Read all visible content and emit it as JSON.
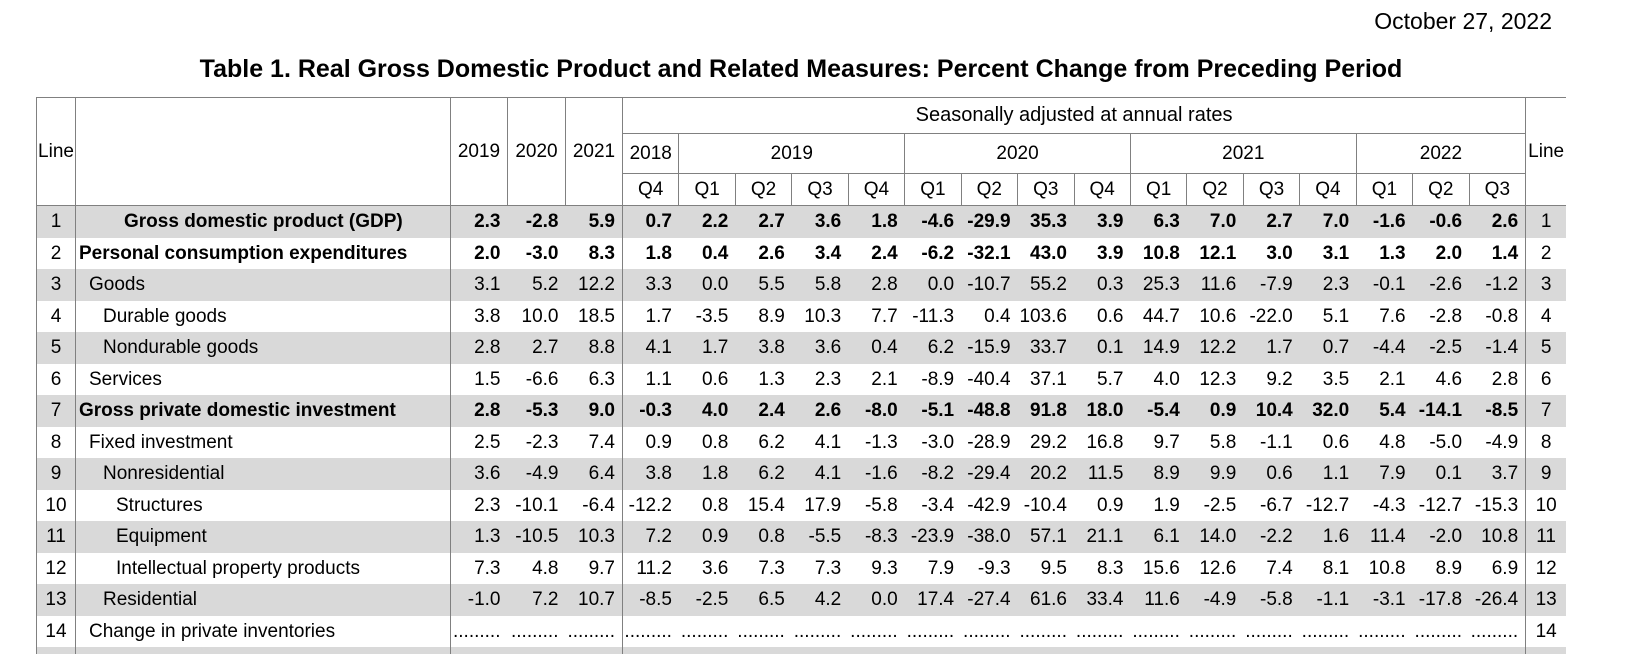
{
  "date": "October 27, 2022",
  "title": "Table 1. Real Gross Domestic Product and Related Measures: Percent Change from Preceding Period",
  "colors": {
    "row_shade": "#d9d9d9",
    "border": "#808080",
    "text": "#000000"
  },
  "header": {
    "line_label": "Line",
    "sa_label": "Seasonally adjusted at annual rates",
    "annual_years": [
      "2019",
      "2020",
      "2021"
    ],
    "year_groups": [
      {
        "label": "2018",
        "span": 1
      },
      {
        "label": "2019",
        "span": 4
      },
      {
        "label": "2020",
        "span": 4
      },
      {
        "label": "2021",
        "span": 4
      },
      {
        "label": "2022",
        "span": 3
      }
    ],
    "quarters": [
      "Q4",
      "Q1",
      "Q2",
      "Q3",
      "Q4",
      "Q1",
      "Q2",
      "Q3",
      "Q4",
      "Q1",
      "Q2",
      "Q3",
      "Q4",
      "Q1",
      "Q2",
      "Q3"
    ]
  },
  "rows": [
    {
      "line": "1",
      "label": "Gross domestic product (GDP)",
      "bold": true,
      "indent": "gdp",
      "annual": [
        "2.3",
        "-2.8",
        "5.9"
      ],
      "quarters": [
        "0.7",
        "2.2",
        "2.7",
        "3.6",
        "1.8",
        "-4.6",
        "-29.9",
        "35.3",
        "3.9",
        "6.3",
        "7.0",
        "2.7",
        "7.0",
        "-1.6",
        "-0.6",
        "2.6"
      ]
    },
    {
      "line": "2",
      "label": "Personal consumption expenditures",
      "bold": true,
      "indent": "0",
      "annual": [
        "2.0",
        "-3.0",
        "8.3"
      ],
      "quarters": [
        "1.8",
        "0.4",
        "2.6",
        "3.4",
        "2.4",
        "-6.2",
        "-32.1",
        "43.0",
        "3.9",
        "10.8",
        "12.1",
        "3.0",
        "3.1",
        "1.3",
        "2.0",
        "1.4"
      ]
    },
    {
      "line": "3",
      "label": "Goods",
      "bold": false,
      "indent": "1",
      "annual": [
        "3.1",
        "5.2",
        "12.2"
      ],
      "quarters": [
        "3.3",
        "0.0",
        "5.5",
        "5.8",
        "2.8",
        "0.0",
        "-10.7",
        "55.2",
        "0.3",
        "25.3",
        "11.6",
        "-7.9",
        "2.3",
        "-0.1",
        "-2.6",
        "-1.2"
      ]
    },
    {
      "line": "4",
      "label": "Durable goods",
      "bold": false,
      "indent": "2",
      "annual": [
        "3.8",
        "10.0",
        "18.5"
      ],
      "quarters": [
        "1.7",
        "-3.5",
        "8.9",
        "10.3",
        "7.7",
        "-11.3",
        "0.4",
        "103.6",
        "0.6",
        "44.7",
        "10.6",
        "-22.0",
        "5.1",
        "7.6",
        "-2.8",
        "-0.8"
      ]
    },
    {
      "line": "5",
      "label": "Nondurable goods",
      "bold": false,
      "indent": "2",
      "annual": [
        "2.8",
        "2.7",
        "8.8"
      ],
      "quarters": [
        "4.1",
        "1.7",
        "3.8",
        "3.6",
        "0.4",
        "6.2",
        "-15.9",
        "33.7",
        "0.1",
        "14.9",
        "12.2",
        "1.7",
        "0.7",
        "-4.4",
        "-2.5",
        "-1.4"
      ]
    },
    {
      "line": "6",
      "label": "Services",
      "bold": false,
      "indent": "1",
      "annual": [
        "1.5",
        "-6.6",
        "6.3"
      ],
      "quarters": [
        "1.1",
        "0.6",
        "1.3",
        "2.3",
        "2.1",
        "-8.9",
        "-40.4",
        "37.1",
        "5.7",
        "4.0",
        "12.3",
        "9.2",
        "3.5",
        "2.1",
        "4.6",
        "2.8"
      ]
    },
    {
      "line": "7",
      "label": "Gross private domestic investment",
      "bold": true,
      "indent": "0",
      "annual": [
        "2.8",
        "-5.3",
        "9.0"
      ],
      "quarters": [
        "-0.3",
        "4.0",
        "2.4",
        "2.6",
        "-8.0",
        "-5.1",
        "-48.8",
        "91.8",
        "18.0",
        "-5.4",
        "0.9",
        "10.4",
        "32.0",
        "5.4",
        "-14.1",
        "-8.5"
      ]
    },
    {
      "line": "8",
      "label": "Fixed investment",
      "bold": false,
      "indent": "1",
      "annual": [
        "2.5",
        "-2.3",
        "7.4"
      ],
      "quarters": [
        "0.9",
        "0.8",
        "6.2",
        "4.1",
        "-1.3",
        "-3.0",
        "-28.9",
        "29.2",
        "16.8",
        "9.7",
        "5.8",
        "-1.1",
        "0.6",
        "4.8",
        "-5.0",
        "-4.9"
      ]
    },
    {
      "line": "9",
      "label": "Nonresidential",
      "bold": false,
      "indent": "2",
      "annual": [
        "3.6",
        "-4.9",
        "6.4"
      ],
      "quarters": [
        "3.8",
        "1.8",
        "6.2",
        "4.1",
        "-1.6",
        "-8.2",
        "-29.4",
        "20.2",
        "11.5",
        "8.9",
        "9.9",
        "0.6",
        "1.1",
        "7.9",
        "0.1",
        "3.7"
      ]
    },
    {
      "line": "10",
      "label": "Structures",
      "bold": false,
      "indent": "3",
      "annual": [
        "2.3",
        "-10.1",
        "-6.4"
      ],
      "quarters": [
        "-12.2",
        "0.8",
        "15.4",
        "17.9",
        "-5.8",
        "-3.4",
        "-42.9",
        "-10.4",
        "0.9",
        "1.9",
        "-2.5",
        "-6.7",
        "-12.7",
        "-4.3",
        "-12.7",
        "-15.3"
      ]
    },
    {
      "line": "11",
      "label": "Equipment",
      "bold": false,
      "indent": "3",
      "annual": [
        "1.3",
        "-10.5",
        "10.3"
      ],
      "quarters": [
        "7.2",
        "0.9",
        "0.8",
        "-5.5",
        "-8.3",
        "-23.9",
        "-38.0",
        "57.1",
        "21.1",
        "6.1",
        "14.0",
        "-2.2",
        "1.6",
        "11.4",
        "-2.0",
        "10.8"
      ]
    },
    {
      "line": "12",
      "label": "Intellectual property products",
      "bold": false,
      "indent": "3",
      "annual": [
        "7.3",
        "4.8",
        "9.7"
      ],
      "quarters": [
        "11.2",
        "3.6",
        "7.3",
        "7.3",
        "9.3",
        "7.9",
        "-9.3",
        "9.5",
        "8.3",
        "15.6",
        "12.6",
        "7.4",
        "8.1",
        "10.8",
        "8.9",
        "6.9"
      ]
    },
    {
      "line": "13",
      "label": "Residential",
      "bold": false,
      "indent": "2",
      "annual": [
        "-1.0",
        "7.2",
        "10.7"
      ],
      "quarters": [
        "-8.5",
        "-2.5",
        "6.5",
        "4.2",
        "0.0",
        "17.4",
        "-27.4",
        "61.6",
        "33.4",
        "11.6",
        "-4.9",
        "-5.8",
        "-1.1",
        "-3.1",
        "-17.8",
        "-26.4"
      ]
    },
    {
      "line": "14",
      "label": "Change in private inventories",
      "bold": false,
      "indent": "1",
      "annual": [
        ".........",
        ".........",
        "........."
      ],
      "quarters": [
        ".........",
        ".........",
        ".........",
        ".........",
        ".........",
        ".........",
        ".........",
        ".........",
        ".........",
        ".........",
        ".........",
        ".........",
        ".........",
        ".........",
        ".........",
        "........."
      ]
    }
  ]
}
